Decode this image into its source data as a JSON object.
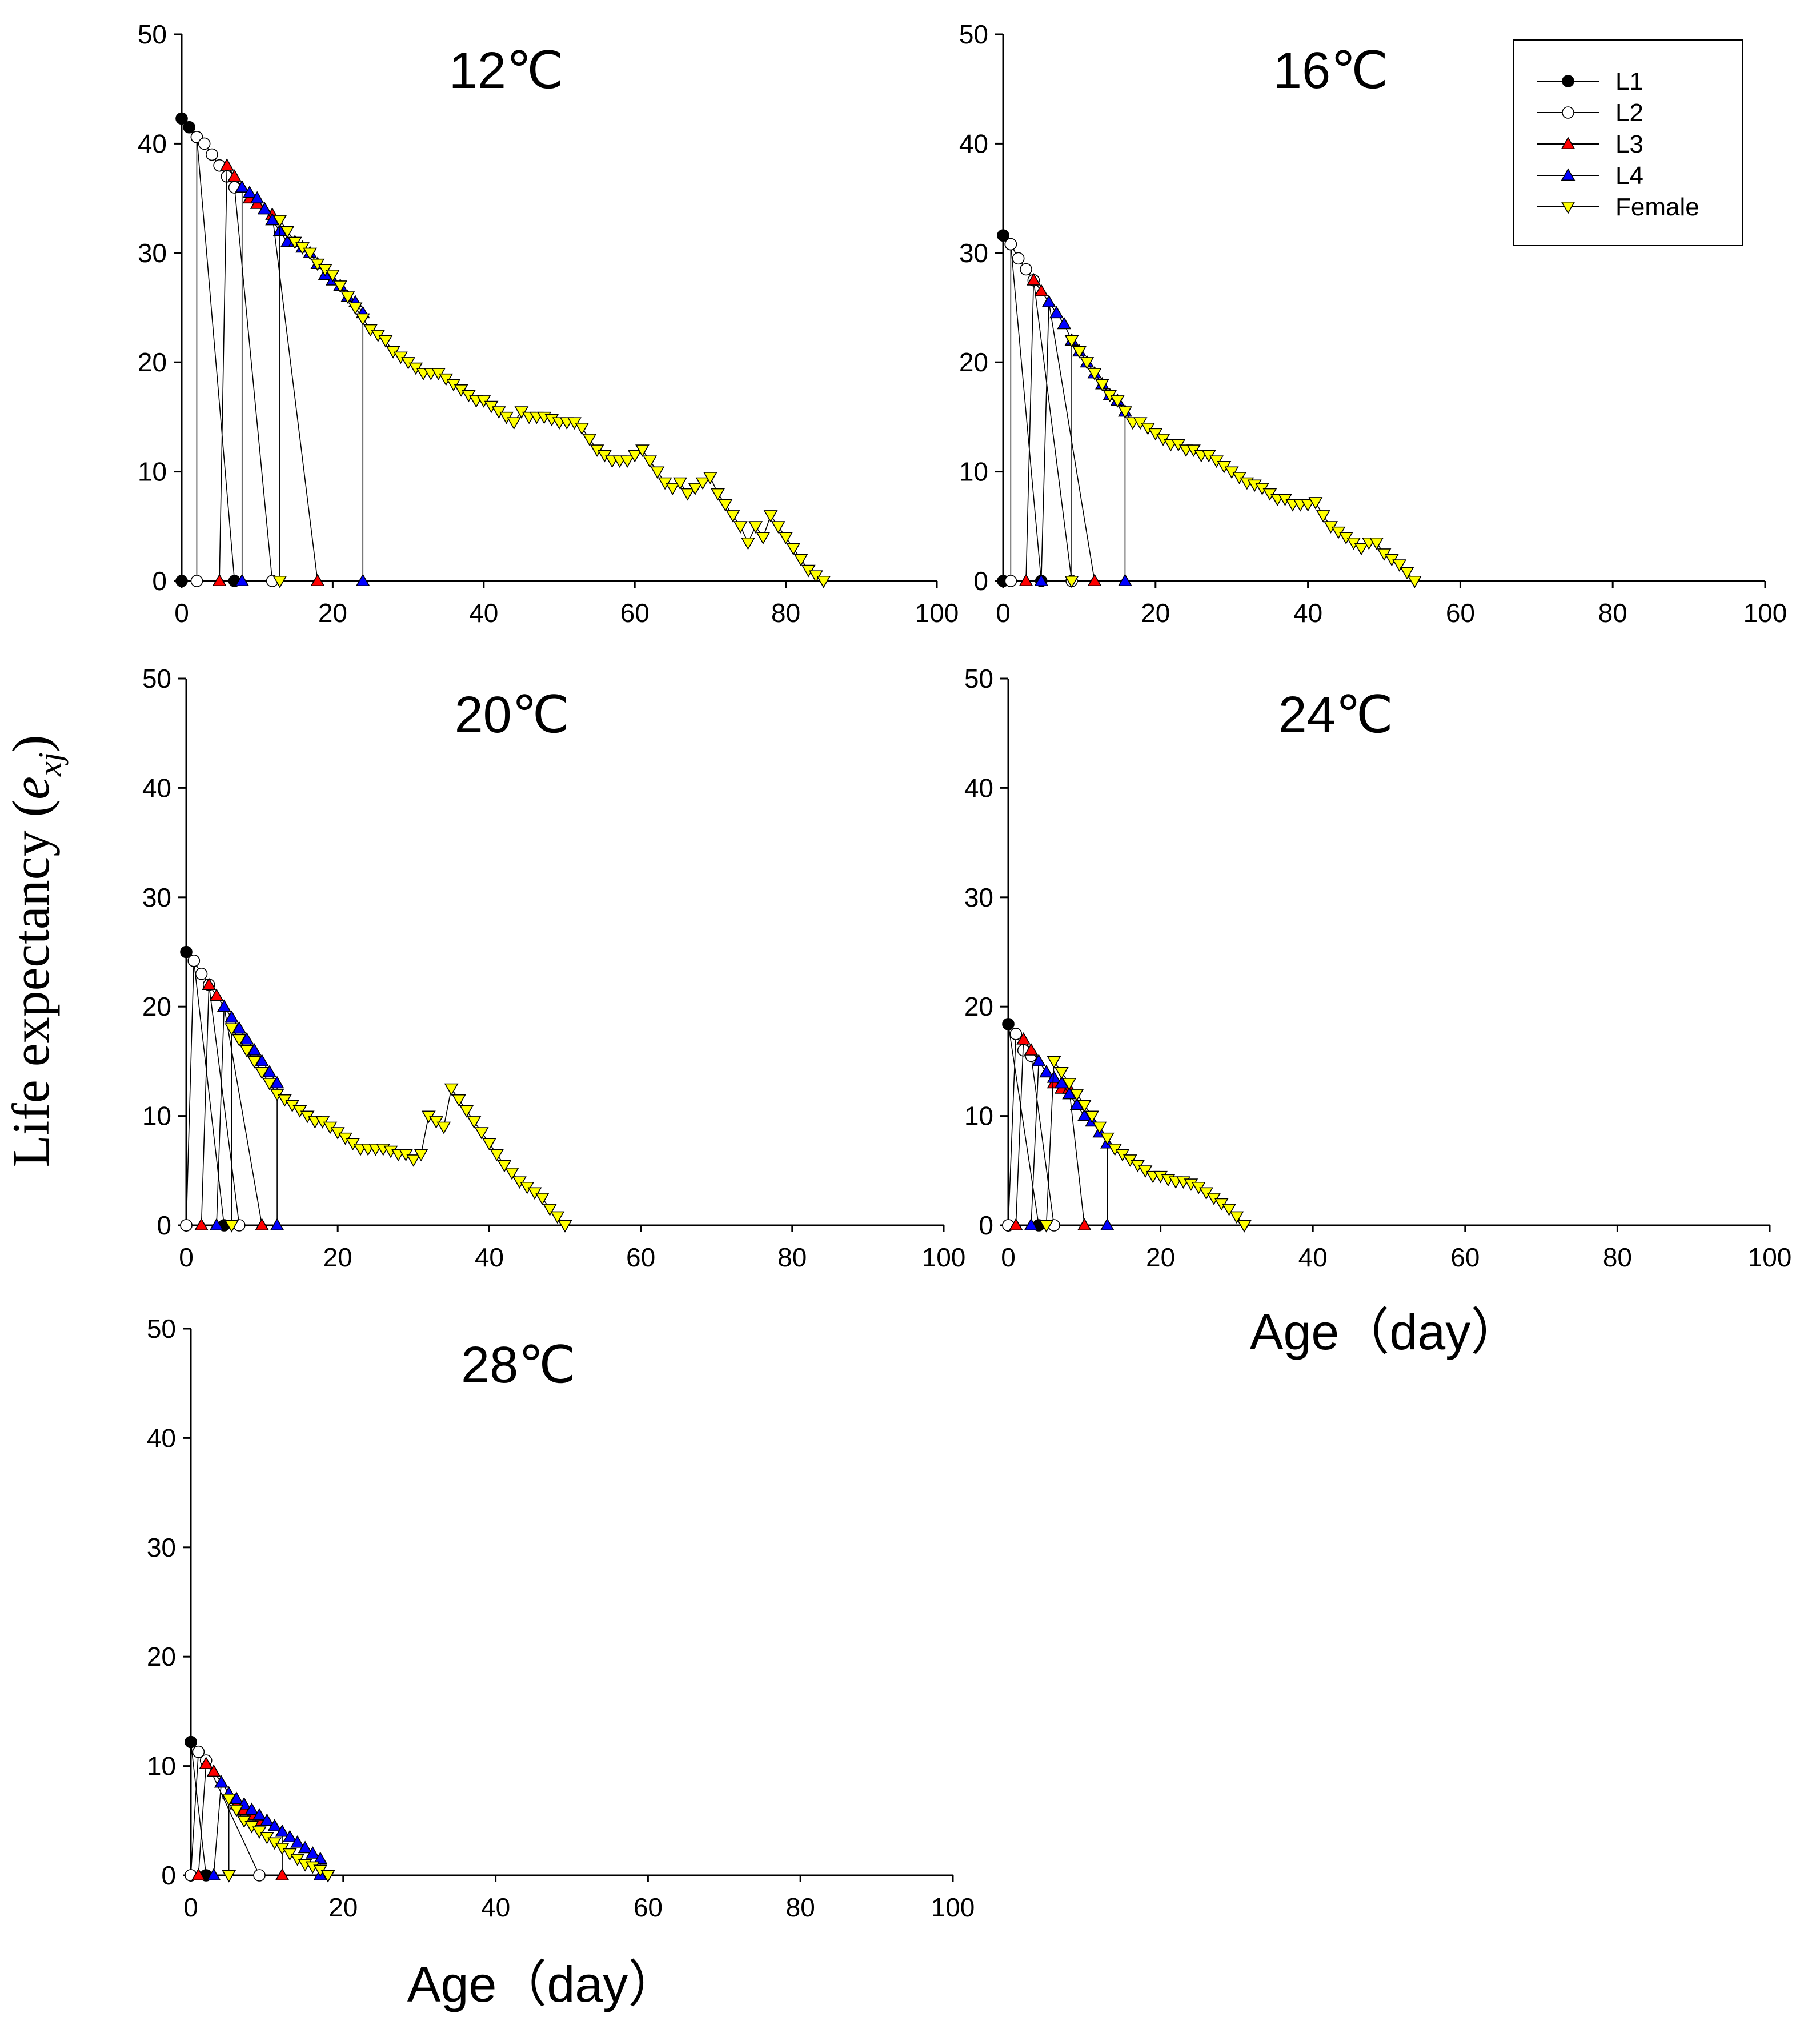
{
  "figure": {
    "ylabel_main": "Life expectancy (",
    "ylabel_var": "e",
    "ylabel_sub": "xj",
    "ylabel_close": ")",
    "xlabel": "Age（day）"
  },
  "legend": [
    {
      "label": "L1",
      "marker": "circle",
      "fill": "#000000"
    },
    {
      "label": "L2",
      "marker": "circle",
      "fill": "#ffffff"
    },
    {
      "label": "L3",
      "marker": "triangle-up",
      "fill": "#ff0000"
    },
    {
      "label": "L4",
      "marker": "triangle-up",
      "fill": "#0000ff"
    },
    {
      "label": "Female",
      "marker": "triangle-down",
      "fill": "#ffff00"
    }
  ],
  "chart_data": [
    {
      "type": "line",
      "title": "12℃",
      "xlabel": "",
      "ylabel": "",
      "xlim": [
        0,
        100
      ],
      "ylim": [
        0,
        50
      ],
      "xticks": [
        "0",
        "20",
        "40",
        "60",
        "80",
        "100"
      ],
      "yticks": [
        "0",
        "10",
        "20",
        "30",
        "40",
        "50"
      ],
      "series": [
        {
          "name": "L1",
          "x": [
            0,
            1,
            2
          ],
          "y": [
            42.3,
            41.5,
            40.6
          ],
          "onset_end": [
            0,
            7
          ]
        },
        {
          "name": "L2",
          "x": [
            2,
            3,
            4,
            5,
            6,
            7
          ],
          "y": [
            40.6,
            40.0,
            39.0,
            38.0,
            37.0,
            36.0
          ],
          "onset_end": [
            2,
            12
          ]
        },
        {
          "name": "L3",
          "x": [
            6,
            7,
            8,
            9,
            10,
            11,
            12
          ],
          "y": [
            38.0,
            37.0,
            36.0,
            35.0,
            34.5,
            34.0,
            33.5
          ],
          "onset_end": [
            5,
            18
          ]
        },
        {
          "name": "L4",
          "x": [
            8,
            9,
            10,
            11,
            12,
            13,
            14,
            15,
            16,
            17,
            18,
            19,
            20,
            21,
            22,
            23,
            24
          ],
          "y": [
            36.0,
            35.5,
            35.0,
            34.0,
            33.0,
            32.0,
            31.0,
            31.0,
            30.5,
            30.0,
            29.0,
            28.0,
            27.5,
            27.0,
            26.0,
            25.5,
            24.5
          ],
          "onset_end": [
            8,
            24
          ]
        },
        {
          "name": "Female",
          "x": [
            13,
            14,
            15,
            16,
            17,
            18,
            19,
            20,
            21,
            22,
            23,
            24,
            25,
            26,
            27,
            28,
            29,
            30,
            31,
            32,
            33,
            34,
            35,
            36,
            37,
            38,
            39,
            40,
            41,
            42,
            43,
            44,
            45,
            46,
            47,
            48,
            49,
            50,
            51,
            52,
            53,
            54,
            55,
            56,
            57,
            58,
            59,
            60,
            61,
            62,
            63,
            64,
            65,
            66,
            67,
            68,
            69,
            70,
            71,
            72,
            73,
            74,
            75,
            76,
            77,
            78,
            79,
            80,
            81,
            82,
            83,
            84,
            85
          ],
          "y": [
            33.0,
            32.0,
            31.0,
            30.5,
            30.0,
            29.0,
            28.5,
            28.0,
            27.0,
            26.0,
            25.0,
            24.0,
            23.0,
            22.5,
            22.0,
            21.0,
            20.5,
            20.0,
            19.5,
            19.0,
            19.0,
            19.0,
            18.5,
            18.0,
            17.5,
            17.0,
            16.5,
            16.5,
            16.0,
            15.5,
            15.0,
            14.5,
            15.5,
            15.0,
            15.0,
            15.0,
            14.8,
            14.5,
            14.5,
            14.5,
            14.0,
            13.0,
            12.0,
            11.5,
            11.0,
            11.0,
            11.0,
            11.5,
            12.0,
            11.0,
            10.0,
            9.0,
            8.5,
            9.0,
            8.0,
            8.5,
            9.0,
            9.5,
            8.0,
            7.0,
            6.0,
            5.0,
            3.5,
            5.0,
            4.0,
            6.0,
            5.0,
            4.0,
            3.0,
            2.0,
            1.0,
            0.5,
            0.0
          ],
          "onset_end": [
            13,
            85
          ]
        }
      ]
    },
    {
      "type": "line",
      "title": "16℃",
      "xlabel": "",
      "ylabel": "",
      "xlim": [
        0,
        100
      ],
      "ylim": [
        0,
        50
      ],
      "xticks": [
        "0",
        "20",
        "40",
        "60",
        "80",
        "100"
      ],
      "yticks": [
        "0",
        "10",
        "20",
        "30",
        "40",
        "50"
      ],
      "series": [
        {
          "name": "L1",
          "x": [
            0,
            1
          ],
          "y": [
            31.6,
            30.8
          ],
          "onset_end": [
            0,
            5
          ]
        },
        {
          "name": "L2",
          "x": [
            1,
            2,
            3,
            4
          ],
          "y": [
            30.8,
            29.5,
            28.5,
            27.5
          ],
          "onset_end": [
            1,
            9
          ]
        },
        {
          "name": "L3",
          "x": [
            4,
            5,
            6
          ],
          "y": [
            27.5,
            26.5,
            25.5
          ],
          "onset_end": [
            3,
            12
          ]
        },
        {
          "name": "L4",
          "x": [
            6,
            7,
            8,
            9,
            10,
            11,
            12,
            13,
            14,
            15,
            16
          ],
          "y": [
            25.5,
            24.5,
            23.5,
            22.0,
            21.0,
            20.0,
            19.0,
            18.0,
            17.0,
            16.5,
            15.5
          ],
          "onset_end": [
            5,
            16
          ]
        },
        {
          "name": "Female",
          "x": [
            9,
            10,
            11,
            12,
            13,
            14,
            15,
            16,
            17,
            18,
            19,
            20,
            21,
            22,
            23,
            24,
            25,
            26,
            27,
            28,
            29,
            30,
            31,
            32,
            33,
            34,
            35,
            36,
            37,
            38,
            39,
            40,
            41,
            42,
            43,
            44,
            45,
            46,
            47,
            48,
            49,
            50,
            51,
            52,
            53,
            54
          ],
          "y": [
            22.0,
            21.0,
            20.0,
            19.0,
            18.0,
            17.0,
            16.5,
            15.5,
            14.5,
            14.5,
            14.0,
            13.5,
            13.0,
            12.5,
            12.5,
            12.0,
            12.0,
            11.5,
            11.5,
            11.0,
            10.5,
            10.0,
            9.5,
            9.0,
            8.8,
            8.5,
            8.0,
            7.5,
            7.5,
            7.0,
            7.0,
            7.0,
            7.2,
            6.0,
            5.0,
            4.5,
            4.0,
            3.5,
            3.0,
            3.5,
            3.5,
            2.5,
            2.0,
            1.5,
            0.8,
            0.0
          ],
          "onset_end": [
            9,
            54
          ]
        }
      ]
    },
    {
      "type": "line",
      "title": "20℃",
      "xlabel": "",
      "ylabel": "",
      "xlim": [
        0,
        100
      ],
      "ylim": [
        0,
        50
      ],
      "xticks": [
        "0",
        "20",
        "40",
        "60",
        "80",
        "100"
      ],
      "yticks": [
        "0",
        "10",
        "20",
        "30",
        "40",
        "50"
      ],
      "series": [
        {
          "name": "L1",
          "x": [
            0,
            1
          ],
          "y": [
            25.0,
            24.2
          ],
          "onset_end": [
            0,
            5
          ]
        },
        {
          "name": "L2",
          "x": [
            1,
            2,
            3
          ],
          "y": [
            24.2,
            23.0,
            22.0
          ],
          "onset_end": [
            0,
            7
          ]
        },
        {
          "name": "L3",
          "x": [
            3,
            4,
            5
          ],
          "y": [
            22.0,
            21.0,
            20.0
          ],
          "onset_end": [
            2,
            10
          ]
        },
        {
          "name": "L4",
          "x": [
            5,
            6,
            7,
            8,
            9,
            10,
            11,
            12
          ],
          "y": [
            20.0,
            19.0,
            18.0,
            17.0,
            16.0,
            15.0,
            14.0,
            13.0
          ],
          "onset_end": [
            4,
            12
          ]
        },
        {
          "name": "Female",
          "x": [
            6,
            7,
            8,
            9,
            10,
            11,
            12,
            13,
            14,
            15,
            16,
            17,
            18,
            19,
            20,
            21,
            22,
            23,
            24,
            25,
            26,
            27,
            28,
            29,
            30,
            31,
            32,
            33,
            34,
            35,
            36,
            37,
            38,
            39,
            40,
            41,
            42,
            43,
            44,
            45,
            46,
            47,
            48,
            49,
            50
          ],
          "y": [
            18.0,
            17.0,
            16.0,
            15.0,
            14.0,
            13.0,
            12.0,
            11.5,
            11.0,
            10.5,
            10.0,
            9.5,
            9.5,
            9.0,
            8.5,
            8.0,
            7.5,
            7.0,
            7.0,
            7.0,
            7.0,
            6.8,
            6.5,
            6.5,
            6.0,
            6.5,
            10.0,
            9.5,
            9.0,
            12.5,
            11.5,
            10.5,
            9.5,
            8.5,
            7.5,
            6.5,
            5.5,
            4.8,
            4.0,
            3.5,
            3.0,
            2.5,
            1.5,
            0.8,
            0.0
          ],
          "onset_end": [
            6,
            50
          ]
        }
      ]
    },
    {
      "type": "line",
      "title": "24℃",
      "xlabel": "",
      "ylabel": "",
      "xlim": [
        0,
        100
      ],
      "ylim": [
        0,
        50
      ],
      "xticks": [
        "0",
        "20",
        "40",
        "60",
        "80",
        "100"
      ],
      "yticks": [
        "0",
        "10",
        "20",
        "30",
        "40",
        "50"
      ],
      "series": [
        {
          "name": "L1",
          "x": [
            0
          ],
          "y": [
            18.4
          ],
          "onset_end": [
            0,
            4
          ]
        },
        {
          "name": "L2",
          "x": [
            1,
            2,
            3
          ],
          "y": [
            17.5,
            16.0,
            15.5
          ],
          "onset_end": [
            0,
            6
          ]
        },
        {
          "name": "L3",
          "x": [
            2,
            3,
            4,
            5,
            6,
            7,
            8
          ],
          "y": [
            17.0,
            16.0,
            15.0,
            14.0,
            13.0,
            12.5,
            12.5
          ],
          "onset_end": [
            1,
            10
          ]
        },
        {
          "name": "L4",
          "x": [
            4,
            5,
            6,
            7,
            8,
            9,
            10,
            11,
            12,
            13
          ],
          "y": [
            15.0,
            14.0,
            13.5,
            13.0,
            12.0,
            11.0,
            10.0,
            9.5,
            8.5,
            7.5
          ],
          "onset_end": [
            3,
            13
          ]
        },
        {
          "name": "Female",
          "x": [
            6,
            7,
            8,
            9,
            10,
            11,
            12,
            13,
            14,
            15,
            16,
            17,
            18,
            19,
            20,
            21,
            22,
            23,
            24,
            25,
            26,
            27,
            28,
            29,
            30,
            31
          ],
          "y": [
            15.0,
            14.0,
            13.0,
            12.0,
            11.0,
            10.0,
            9.0,
            8.0,
            7.0,
            6.5,
            6.0,
            5.5,
            5.0,
            4.5,
            4.5,
            4.2,
            4.0,
            4.0,
            3.8,
            3.5,
            3.0,
            2.5,
            2.0,
            1.5,
            0.8,
            0.0
          ],
          "onset_end": [
            5,
            31
          ]
        }
      ]
    },
    {
      "type": "line",
      "title": "28℃",
      "xlabel": "",
      "ylabel": "",
      "xlim": [
        0,
        100
      ],
      "ylim": [
        0,
        50
      ],
      "xticks": [
        "0",
        "20",
        "40",
        "60",
        "80",
        "100"
      ],
      "yticks": [
        "0",
        "10",
        "20",
        "30",
        "40",
        "50"
      ],
      "series": [
        {
          "name": "L1",
          "x": [
            0
          ],
          "y": [
            12.2
          ],
          "onset_end": [
            0,
            2
          ]
        },
        {
          "name": "L2",
          "x": [
            1,
            2
          ],
          "y": [
            11.3,
            10.5
          ],
          "onset_end": [
            0,
            9
          ]
        },
        {
          "name": "L3",
          "x": [
            2,
            3,
            4,
            5,
            6,
            7,
            8,
            9,
            10,
            11,
            12
          ],
          "y": [
            10.2,
            9.5,
            8.5,
            7.5,
            6.5,
            6.0,
            5.5,
            5.0,
            5.0,
            4.5,
            4.0
          ],
          "onset_end": [
            1,
            12
          ]
        },
        {
          "name": "L4",
          "x": [
            4,
            5,
            6,
            7,
            8,
            9,
            10,
            11,
            12,
            13,
            14,
            15,
            16,
            17
          ],
          "y": [
            8.5,
            7.5,
            7.0,
            6.5,
            6.0,
            5.5,
            5.0,
            4.5,
            4.0,
            3.5,
            3.0,
            2.5,
            2.0,
            1.5
          ],
          "onset_end": [
            3,
            17
          ]
        },
        {
          "name": "Female",
          "x": [
            5,
            6,
            7,
            8,
            9,
            10,
            11,
            12,
            13,
            14,
            15,
            16,
            17,
            18
          ],
          "y": [
            7.0,
            6.0,
            5.0,
            4.5,
            4.0,
            3.5,
            3.0,
            2.5,
            2.0,
            1.5,
            1.0,
            0.8,
            0.5,
            0.0
          ],
          "onset_end": [
            5,
            18
          ]
        }
      ]
    }
  ]
}
